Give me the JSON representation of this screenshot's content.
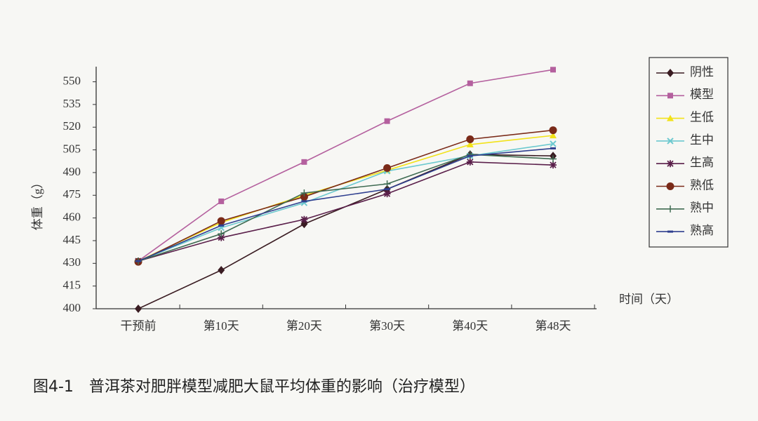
{
  "chart_data": {
    "type": "line",
    "title": "图4-1　普洱茶对肥胖模型减肥大鼠平均体重的影响（治疗模型）",
    "xlabel": "时间（天）",
    "ylabel": "体重（g）",
    "categories": [
      "干预前",
      "第10天",
      "第20天",
      "第30天",
      "第40天",
      "第48天"
    ],
    "ylim": [
      400,
      560
    ],
    "yticks": [
      400,
      415,
      430,
      445,
      460,
      475,
      490,
      505,
      520,
      535,
      550
    ],
    "legend": "right",
    "series": [
      {
        "name": "阴性",
        "color": "#3a1c22",
        "marker": "diamond",
        "values": [
          400,
          425.5,
          456,
          479,
          502,
          501
        ]
      },
      {
        "name": "模型",
        "color": "#b4609e",
        "marker": "square",
        "values": [
          431.5,
          471,
          497,
          524,
          549,
          558
        ]
      },
      {
        "name": "生低",
        "color": "#f2e21a",
        "marker": "triangle",
        "values": [
          431.5,
          457,
          475,
          491.5,
          508.5,
          514.5
        ]
      },
      {
        "name": "生中",
        "color": "#6cc9cf",
        "marker": "x",
        "values": [
          431.5,
          453.5,
          470,
          491,
          501,
          509
        ]
      },
      {
        "name": "生高",
        "color": "#5a1f4a",
        "marker": "star",
        "values": [
          431.5,
          447,
          459,
          476,
          497,
          495
        ]
      },
      {
        "name": "熟低",
        "color": "#7a2a18",
        "marker": "circle",
        "values": [
          431,
          458,
          474,
          493,
          512,
          518
        ]
      },
      {
        "name": "熟中",
        "color": "#3f6b52",
        "marker": "plus",
        "values": [
          431.5,
          449.5,
          476.5,
          482.5,
          502,
          499
        ]
      },
      {
        "name": "熟高",
        "color": "#2f3f8f",
        "marker": "dash",
        "values": [
          431.5,
          455,
          471,
          479,
          501,
          506
        ]
      }
    ]
  }
}
